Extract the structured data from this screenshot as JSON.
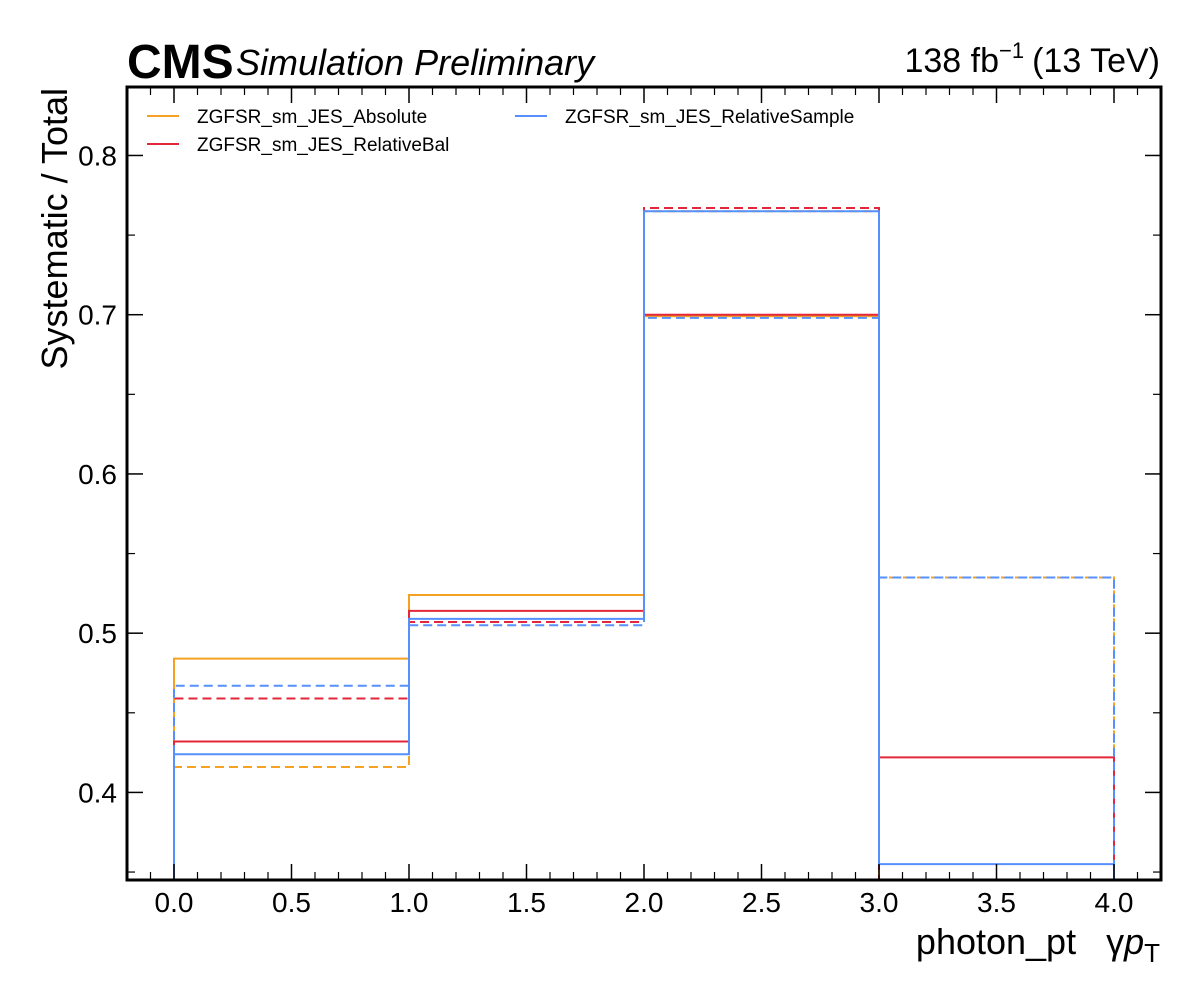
{
  "header": {
    "experiment": "CMS",
    "status": "Simulation Preliminary",
    "lumi_value": "138 fb",
    "lumi_exponent": "−1",
    "energy": "(13 TeV)"
  },
  "chart_data": {
    "type": "step-line",
    "xlabel_main": "photon_pt",
    "xlabel_symbol": "γ",
    "xlabel_var": "p",
    "xlabel_sub": "T",
    "ylabel": "Systematic / Total",
    "xlim": [
      -0.2,
      4.2
    ],
    "ylim": [
      0.345,
      0.843
    ],
    "bin_edges": [
      0,
      1,
      2,
      3,
      4
    ],
    "xticks": [
      "0.0",
      "0.5",
      "1.0",
      "1.5",
      "2.0",
      "2.5",
      "3.0",
      "3.5",
      "4.0"
    ],
    "yticks": [
      "0.4",
      "0.5",
      "0.6",
      "0.7",
      "0.8"
    ],
    "legend_placement": "top-left, two columns",
    "series": [
      {
        "name": "ZGFSR_sm_JES_Absolute",
        "color": "#f5a122",
        "up": [
          0.484,
          0.524,
          0.699,
          0.345
        ],
        "down": [
          0.416,
          0.507,
          0.765,
          0.535
        ]
      },
      {
        "name": "ZGFSR_sm_JES_RelativeBal",
        "color": "#e3273a",
        "up": [
          0.432,
          0.514,
          0.7,
          0.422
        ],
        "down": [
          0.459,
          0.507,
          0.767,
          0.345
        ]
      },
      {
        "name": "ZGFSR_sm_JES_RelativeSample",
        "color": "#5790fc",
        "up": [
          0.424,
          0.509,
          0.765,
          0.355
        ],
        "down": [
          0.467,
          0.505,
          0.698,
          0.535
        ]
      }
    ]
  }
}
